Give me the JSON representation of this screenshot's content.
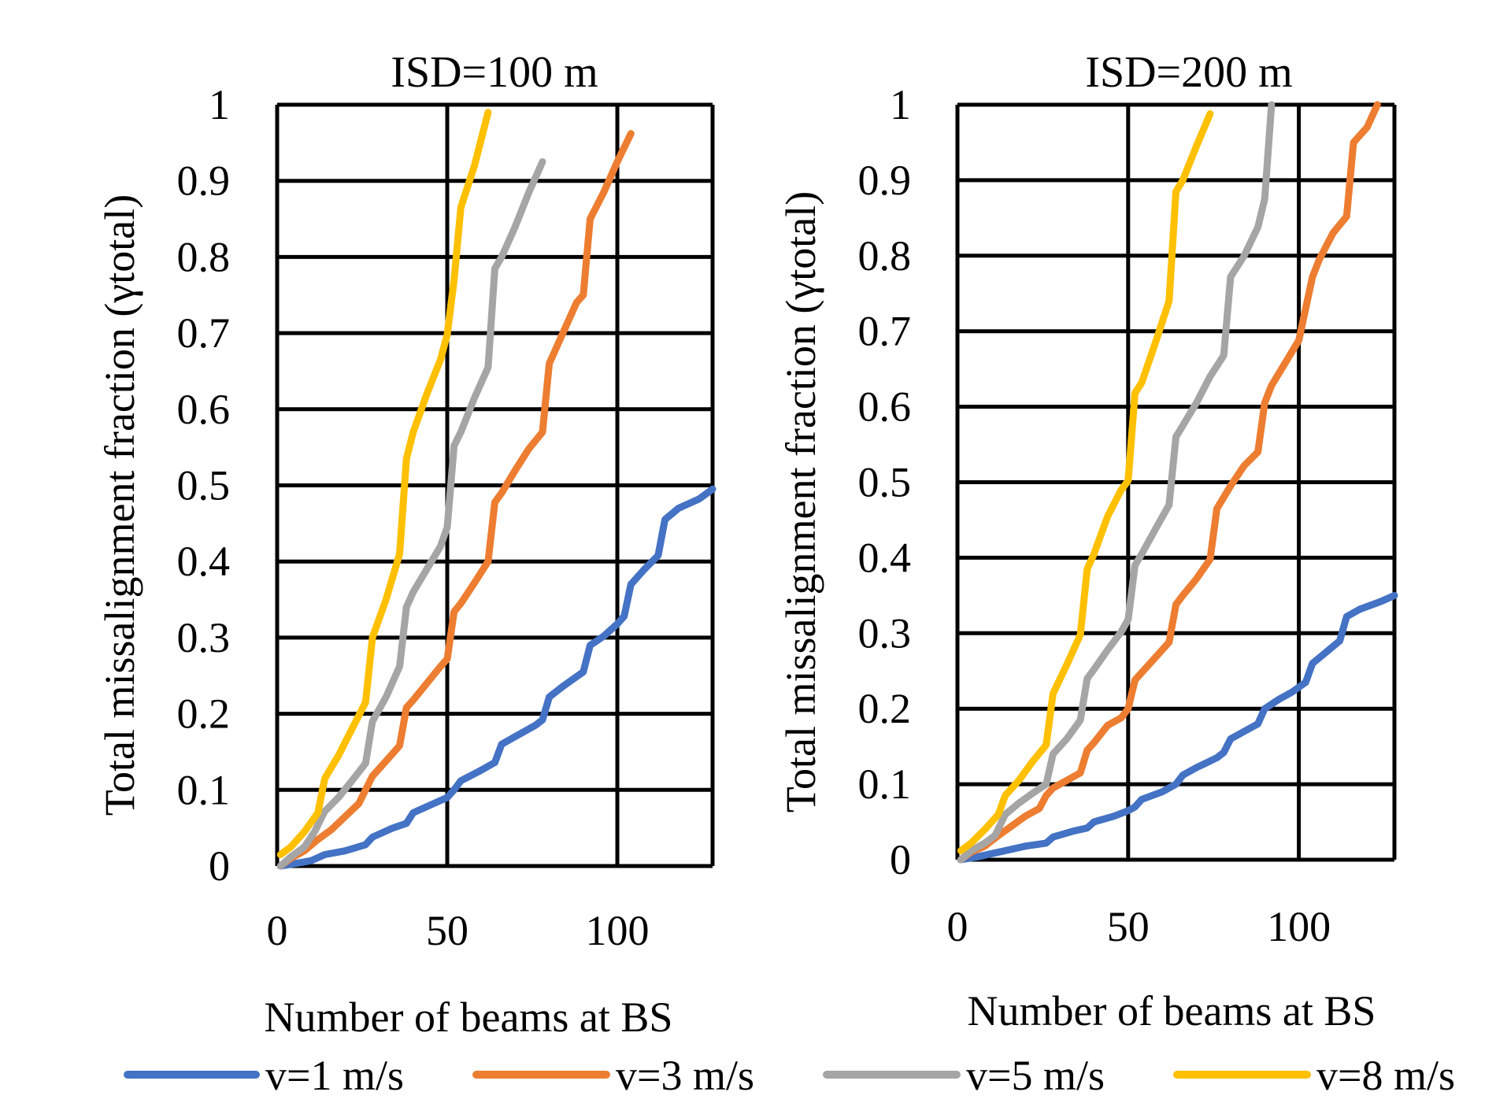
{
  "figure": {
    "shared_ylabel": "Total missalignment fraction (γtotal)",
    "legend": [
      {
        "label": "v=1 m/s",
        "color": "#4472C4"
      },
      {
        "label": "v=3 m/s",
        "color": "#ED7D31"
      },
      {
        "label": "v=5 m/s",
        "color": "#A5A5A5"
      },
      {
        "label": "v=8 m/s",
        "color": "#FFC000"
      }
    ]
  },
  "chart_data": [
    {
      "type": "line",
      "title": "ISD=100 m",
      "xlabel": "Number of beams at BS",
      "ylabel": "Total missalignment fraction (γtotal)",
      "xlim": [
        0,
        128
      ],
      "ylim": [
        0,
        1
      ],
      "xticks": [
        "0",
        "50",
        "100"
      ],
      "xtick_values": [
        0,
        50,
        100
      ],
      "yticks": [
        "0",
        "0.1",
        "0.2",
        "0.3",
        "0.4",
        "0.5",
        "0.6",
        "0.7",
        "0.8",
        "0.9",
        "1"
      ],
      "ytick_values": [
        0,
        0.1,
        0.2,
        0.3,
        0.4,
        0.5,
        0.6,
        0.7,
        0.8,
        0.9,
        1
      ],
      "vertical_gridlines": [
        0,
        50,
        100,
        128
      ],
      "grid": true,
      "legend_position": "bottom",
      "series": [
        {
          "name": "v=1 m/s",
          "color": "#4472C4",
          "x": [
            1,
            5,
            10,
            14,
            20,
            26,
            28,
            34,
            38,
            40,
            46,
            50,
            52,
            54,
            60,
            64,
            66,
            70,
            76,
            78,
            80,
            84,
            90,
            92,
            96,
            100,
            102,
            104,
            108,
            112,
            114,
            118,
            124,
            128
          ],
          "y": [
            0,
            0.003,
            0.007,
            0.015,
            0.02,
            0.028,
            0.038,
            0.05,
            0.056,
            0.07,
            0.082,
            0.09,
            0.1,
            0.112,
            0.126,
            0.136,
            0.16,
            0.17,
            0.185,
            0.192,
            0.222,
            0.236,
            0.255,
            0.29,
            0.302,
            0.318,
            0.328,
            0.37,
            0.39,
            0.408,
            0.455,
            0.47,
            0.482,
            0.495
          ]
        },
        {
          "name": "v=3 m/s",
          "color": "#ED7D31",
          "x": [
            1,
            4,
            8,
            12,
            16,
            20,
            24,
            26,
            28,
            32,
            36,
            38,
            40,
            44,
            48,
            50,
            52,
            54,
            58,
            62,
            64,
            66,
            70,
            74,
            78,
            80,
            84,
            88,
            90,
            92,
            96,
            100,
            104
          ],
          "y": [
            0,
            0.01,
            0.02,
            0.035,
            0.048,
            0.065,
            0.082,
            0.1,
            0.118,
            0.138,
            0.158,
            0.208,
            0.218,
            0.24,
            0.262,
            0.272,
            0.334,
            0.345,
            0.372,
            0.4,
            0.478,
            0.49,
            0.52,
            0.548,
            0.57,
            0.66,
            0.7,
            0.74,
            0.75,
            0.85,
            0.885,
            0.925,
            0.962
          ]
        },
        {
          "name": "v=5 m/s",
          "color": "#A5A5A5",
          "x": [
            1,
            4,
            8,
            11,
            14,
            18,
            22,
            26,
            28,
            32,
            36,
            38,
            40,
            44,
            48,
            50,
            52,
            54,
            58,
            62,
            64,
            66,
            70,
            74,
            78
          ],
          "y": [
            0,
            0.012,
            0.025,
            0.045,
            0.072,
            0.09,
            0.112,
            0.135,
            0.19,
            0.222,
            0.262,
            0.34,
            0.36,
            0.39,
            0.42,
            0.445,
            0.552,
            0.57,
            0.615,
            0.655,
            0.785,
            0.8,
            0.84,
            0.885,
            0.925
          ]
        },
        {
          "name": "v=8 m/s",
          "color": "#FFC000",
          "x": [
            1,
            4,
            8,
            12,
            14,
            18,
            22,
            26,
            28,
            32,
            36,
            38,
            40,
            44,
            48,
            50,
            52,
            54,
            58,
            62
          ],
          "y": [
            0.015,
            0.025,
            0.045,
            0.07,
            0.115,
            0.145,
            0.18,
            0.215,
            0.3,
            0.35,
            0.41,
            0.535,
            0.57,
            0.62,
            0.665,
            0.698,
            0.77,
            0.865,
            0.92,
            0.99
          ]
        }
      ]
    },
    {
      "type": "line",
      "title": "ISD=200 m",
      "xlabel": "Number of beams at BS",
      "ylabel": "Total missalignment fraction (γtotal)",
      "xlim": [
        0,
        128
      ],
      "ylim": [
        0,
        1
      ],
      "xticks": [
        "0",
        "50",
        "100"
      ],
      "xtick_values": [
        0,
        50,
        100
      ],
      "yticks": [
        "0",
        "0.1",
        "0.2",
        "0.3",
        "0.4",
        "0.5",
        "0.6",
        "0.7",
        "0.8",
        "0.9",
        "1"
      ],
      "ytick_values": [
        0,
        0.1,
        0.2,
        0.3,
        0.4,
        0.5,
        0.6,
        0.7,
        0.8,
        0.9,
        1
      ],
      "vertical_gridlines": [
        0,
        50,
        100,
        128
      ],
      "grid": true,
      "legend_position": "bottom",
      "series": [
        {
          "name": "v=1 m/s",
          "color": "#4472C4",
          "x": [
            1,
            6,
            10,
            14,
            20,
            26,
            28,
            34,
            38,
            40,
            46,
            50,
            52,
            54,
            60,
            64,
            66,
            70,
            76,
            78,
            80,
            84,
            88,
            90,
            94,
            98,
            102,
            104,
            108,
            112,
            114,
            118,
            124,
            128
          ],
          "y": [
            0,
            0.004,
            0.008,
            0.012,
            0.018,
            0.022,
            0.03,
            0.038,
            0.042,
            0.05,
            0.058,
            0.065,
            0.07,
            0.08,
            0.09,
            0.1,
            0.112,
            0.122,
            0.135,
            0.142,
            0.16,
            0.17,
            0.18,
            0.2,
            0.212,
            0.222,
            0.235,
            0.26,
            0.275,
            0.29,
            0.322,
            0.332,
            0.342,
            0.35
          ]
        },
        {
          "name": "v=3 m/s",
          "color": "#ED7D31",
          "x": [
            1,
            4,
            8,
            12,
            16,
            20,
            24,
            26,
            28,
            32,
            36,
            38,
            40,
            44,
            48,
            50,
            52,
            54,
            58,
            62,
            64,
            66,
            70,
            74,
            76,
            80,
            84,
            88,
            90,
            92,
            96,
            100,
            104,
            106,
            110,
            114,
            116,
            120,
            123
          ],
          "y": [
            0,
            0.01,
            0.018,
            0.032,
            0.045,
            0.058,
            0.068,
            0.085,
            0.095,
            0.105,
            0.115,
            0.145,
            0.155,
            0.178,
            0.188,
            0.2,
            0.238,
            0.248,
            0.268,
            0.288,
            0.338,
            0.35,
            0.372,
            0.398,
            0.465,
            0.495,
            0.522,
            0.54,
            0.605,
            0.628,
            0.658,
            0.688,
            0.772,
            0.795,
            0.83,
            0.852,
            0.95,
            0.97,
            1.0
          ]
        },
        {
          "name": "v=5 m/s",
          "color": "#A5A5A5",
          "x": [
            1,
            4,
            8,
            11,
            14,
            18,
            22,
            26,
            28,
            32,
            36,
            38,
            40,
            44,
            48,
            50,
            52,
            54,
            58,
            62,
            64,
            66,
            70,
            74,
            78,
            80,
            84,
            88,
            90,
            92
          ],
          "y": [
            0,
            0.012,
            0.022,
            0.032,
            0.06,
            0.075,
            0.088,
            0.1,
            0.14,
            0.16,
            0.185,
            0.24,
            0.252,
            0.278,
            0.302,
            0.318,
            0.39,
            0.405,
            0.438,
            0.47,
            0.56,
            0.575,
            0.605,
            0.64,
            0.668,
            0.772,
            0.8,
            0.838,
            0.875,
            1.0
          ]
        },
        {
          "name": "v=8 m/s",
          "color": "#FFC000",
          "x": [
            1,
            4,
            8,
            12,
            14,
            18,
            22,
            26,
            28,
            32,
            36,
            38,
            40,
            44,
            48,
            50,
            52,
            54,
            58,
            62,
            64,
            66,
            70,
            74
          ],
          "y": [
            0.012,
            0.022,
            0.04,
            0.06,
            0.085,
            0.105,
            0.13,
            0.152,
            0.22,
            0.258,
            0.298,
            0.385,
            0.405,
            0.455,
            0.49,
            0.502,
            0.618,
            0.632,
            0.685,
            0.74,
            0.885,
            0.9,
            0.945,
            0.988
          ]
        }
      ]
    }
  ]
}
